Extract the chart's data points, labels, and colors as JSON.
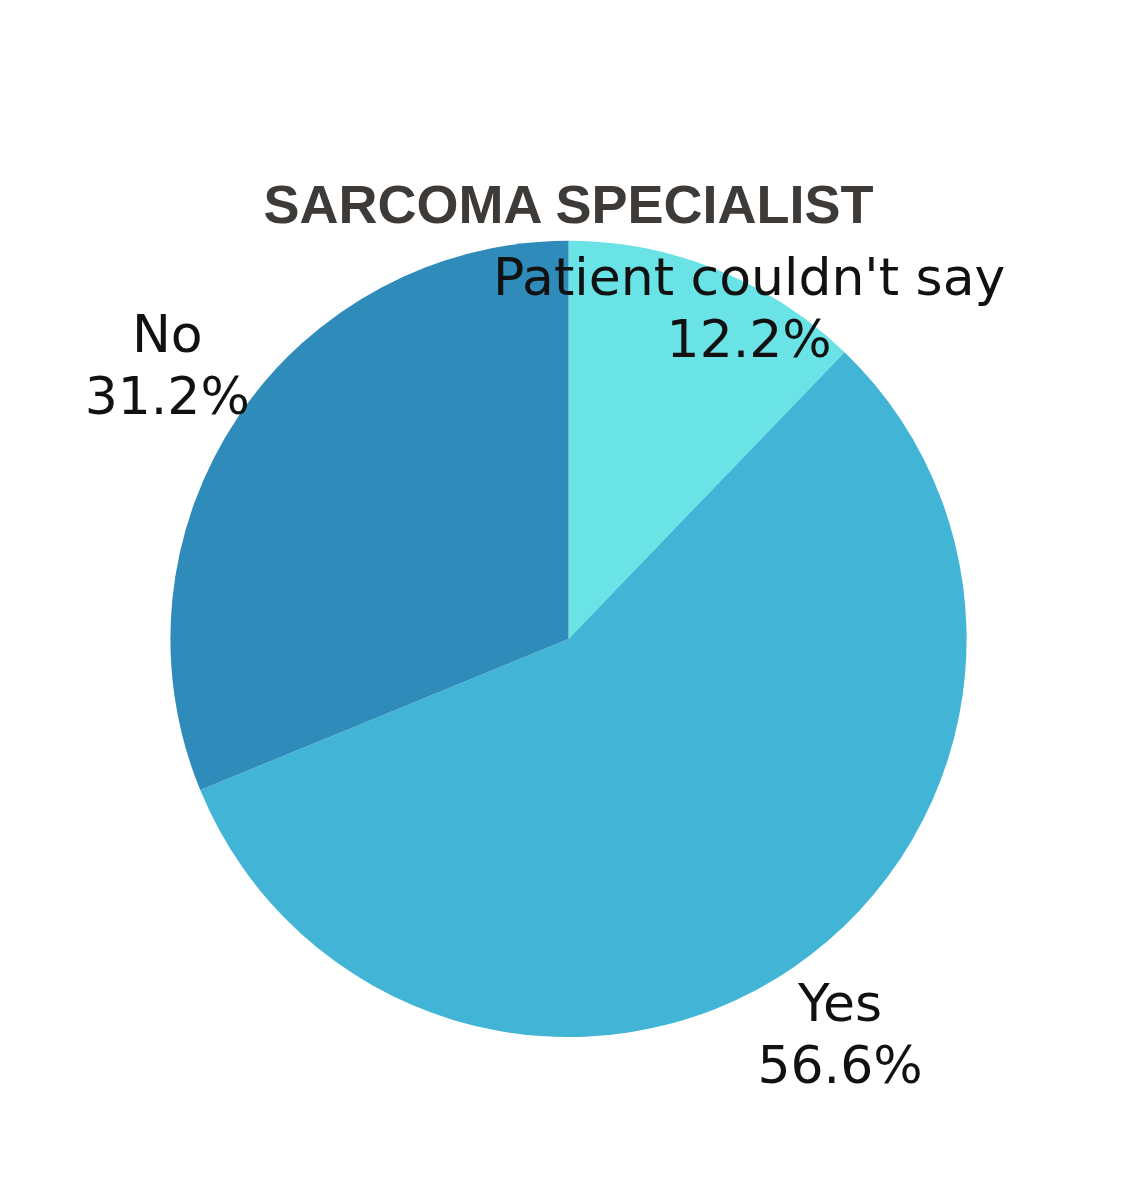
{
  "chart_data": {
    "type": "pie",
    "title": "SARCOMA SPECIALIST",
    "categories": [
      "Patient couldn't say",
      "Yes",
      "No"
    ],
    "values": [
      12.2,
      56.6,
      31.2
    ],
    "value_labels": [
      "12.2%",
      "56.6%",
      "31.2%"
    ],
    "colors": [
      "#6ae3e6",
      "#42b5d6",
      "#2e8bba"
    ],
    "legend": false
  }
}
